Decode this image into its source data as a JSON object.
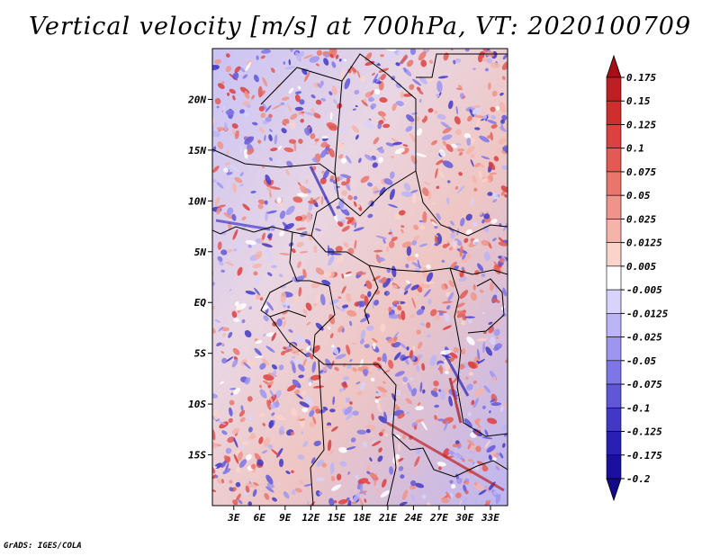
{
  "chart_data": {
    "type": "heatmap",
    "title": "Vertical velocity [m/s] at 700hPa, VT: 2020100709",
    "variable": "Vertical velocity",
    "units": "m/s",
    "level": "700hPa",
    "valid_time": "2020100709",
    "x_ticks": [
      "3E",
      "6E",
      "9E",
      "12E",
      "15E",
      "18E",
      "21E",
      "24E",
      "27E",
      "30E",
      "33E"
    ],
    "y_ticks": [
      "20N",
      "15N",
      "10N",
      "5N",
      "EQ",
      "5S",
      "10S",
      "15S"
    ],
    "x_values": [
      3,
      6,
      9,
      12,
      15,
      18,
      21,
      24,
      27,
      30,
      33
    ],
    "y_values": [
      20,
      15,
      10,
      5,
      0,
      -5,
      -10,
      -15
    ],
    "xlim": [
      0.5,
      35
    ],
    "ylim": [
      -20,
      25
    ],
    "colorbar": {
      "labels": [
        "0.175",
        "0.15",
        "0.125",
        "0.1",
        "0.075",
        "0.05",
        "0.025",
        "0.0125",
        "0.005",
        "-0.005",
        "-0.0125",
        "-0.025",
        "-0.05",
        "-0.075",
        "-0.1",
        "-0.125",
        "-0.175",
        "-0.2"
      ],
      "colors": [
        "#a50f15",
        "#be1e24",
        "#d02d2d",
        "#dc4040",
        "#e25a53",
        "#e8766c",
        "#ef948a",
        "#f5b4aa",
        "#fad3cb",
        "#ffffff",
        "#d7d3fb",
        "#bbb4f5",
        "#9d95ee",
        "#7e76e5",
        "#5f57d8",
        "#4238c7",
        "#2a1fb4",
        "#1a0f9e",
        "#120a8a"
      ]
    }
  },
  "footer": "GrADS: IGES/COLA"
}
